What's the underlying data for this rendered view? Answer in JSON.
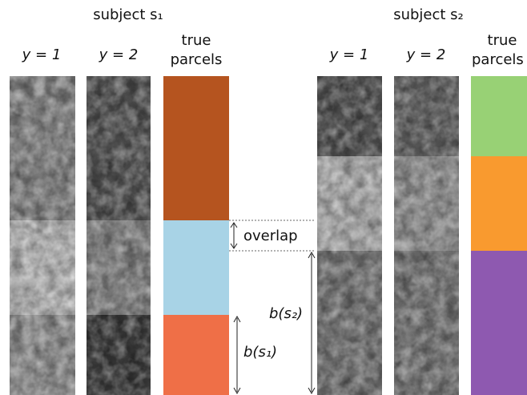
{
  "subjects": [
    {
      "title": "subject s₁",
      "columns": [
        "y = 1",
        "y = 2"
      ],
      "parcels_label": [
        "true",
        "parcels"
      ]
    },
    {
      "title": "subject s₂",
      "columns": [
        "y = 1",
        "y = 2"
      ],
      "parcels_label": [
        "true",
        "parcels"
      ]
    }
  ],
  "annotations": {
    "overlap": "overlap",
    "b_s2": "b(s₂)",
    "b_s1": "b(s₁)"
  }
}
